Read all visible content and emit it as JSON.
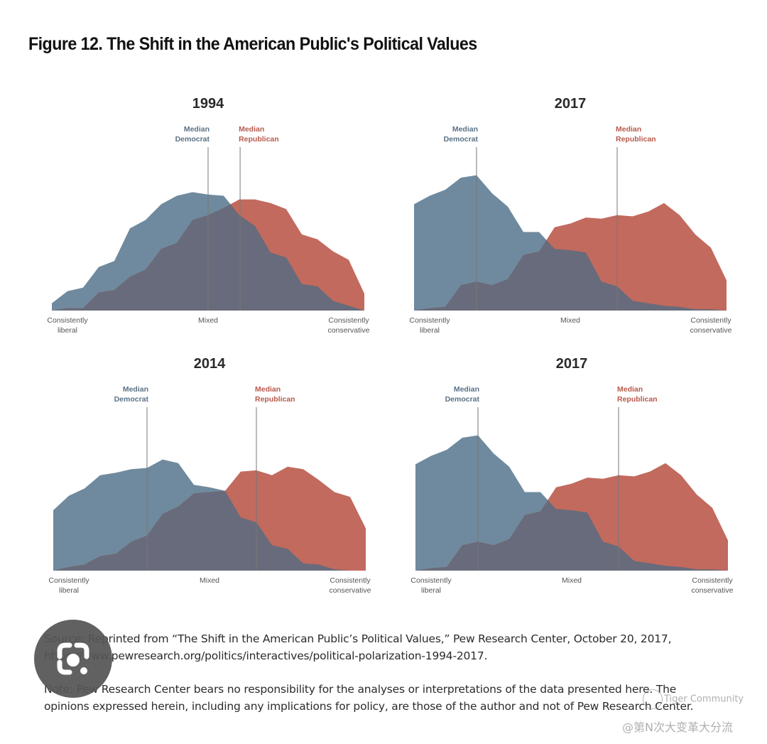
{
  "figure": {
    "title": "Figure 12. The Shift in the American Public's Political Values"
  },
  "colors": {
    "democrat": "#6f8a9e",
    "republican": "#c26a5e",
    "overlap": "#686b7b",
    "democrat_label": "#5a7286",
    "republican_label": "#b85a4c",
    "median_line": "#777777"
  },
  "chart_data": [
    {
      "type": "area",
      "title": "1994",
      "xlabel_left": "Consistently\nliberal",
      "xlabel_center": "Mixed",
      "xlabel_right": "Consistently\nconservative",
      "x_points": 21,
      "y_unit": "relative share (0-100, no axis shown)",
      "series": [
        {
          "name": "Democrats",
          "values": [
            6,
            16,
            19,
            36,
            41,
            68,
            75,
            88,
            95,
            98,
            96,
            95,
            79,
            70,
            48,
            44,
            22,
            20,
            8,
            4,
            0
          ]
        },
        {
          "name": "Republicans",
          "values": [
            0,
            2,
            2,
            15,
            17,
            28,
            34,
            51,
            56,
            75,
            79,
            85,
            92,
            92,
            89,
            84,
            63,
            59,
            49,
            42,
            14
          ]
        }
      ],
      "medians": {
        "democrat_label": "Median\nDemocrat",
        "republican_label": "Median\nRepublican",
        "democrat_position": 10.0,
        "republican_position": 12.05
      }
    },
    {
      "type": "area",
      "title": "2017",
      "xlabel_left": "Consistently\nliberal",
      "xlabel_center": "Mixed",
      "xlabel_right": "Consistently\nconservative",
      "x_points": 21,
      "y_unit": "relative share (0-100, no axis shown)",
      "series": [
        {
          "name": "Democrats",
          "values": [
            88,
            95,
            100,
            110,
            112,
            97,
            86,
            65,
            65,
            51,
            50,
            48,
            24,
            20,
            8,
            6,
            4,
            3,
            1,
            1,
            0
          ]
        },
        {
          "name": "Republicans",
          "values": [
            0,
            2,
            3,
            21,
            24,
            21,
            26,
            46,
            49,
            69,
            72,
            77,
            76,
            79,
            78,
            82,
            89,
            79,
            63,
            52,
            25
          ]
        }
      ],
      "medians": {
        "democrat_label": "Median\nDemocrat",
        "republican_label": "Median\nRepublican",
        "democrat_position": 4.0,
        "republican_position": 13.0
      }
    },
    {
      "type": "area",
      "title": "2014",
      "xlabel_left": "Consistently\nliberal",
      "xlabel_center": "Mixed",
      "xlabel_right": "Consistently\nconservative",
      "x_points": 21,
      "y_unit": "relative share (0-100, no axis shown)",
      "series": [
        {
          "name": "Democrats",
          "values": [
            50,
            62,
            68,
            79,
            81,
            84,
            85,
            92,
            89,
            71,
            69,
            66,
            44,
            40,
            21,
            18,
            6,
            5,
            1,
            0,
            0
          ]
        },
        {
          "name": "Republicans",
          "values": [
            0,
            3,
            5,
            12,
            14,
            24,
            29,
            47,
            53,
            64,
            65,
            66,
            82,
            83,
            79,
            86,
            84,
            75,
            65,
            61,
            35
          ]
        }
      ],
      "medians": {
        "democrat_label": "Median\nDemocrat",
        "republican_label": "Median\nRepublican",
        "democrat_position": 6.0,
        "republican_position": 13.0
      }
    },
    {
      "type": "area",
      "title": "2017",
      "xlabel_left": "Consistently\nliberal",
      "xlabel_center": "Mixed",
      "xlabel_right": "Consistently\nconservative",
      "x_points": 21,
      "y_unit": "relative share (0-100, no axis shown)",
      "series": [
        {
          "name": "Democrats",
          "values": [
            88,
            95,
            100,
            110,
            112,
            97,
            86,
            65,
            65,
            51,
            50,
            48,
            24,
            20,
            8,
            6,
            4,
            3,
            1,
            1,
            0
          ]
        },
        {
          "name": "Republicans",
          "values": [
            0,
            2,
            3,
            21,
            24,
            21,
            26,
            46,
            49,
            69,
            72,
            77,
            76,
            79,
            78,
            82,
            89,
            79,
            63,
            52,
            25
          ]
        }
      ],
      "medians": {
        "democrat_label": "Median\nDemocrat",
        "republican_label": "Median\nRepublican",
        "democrat_position": 4.0,
        "republican_position": 13.0
      }
    }
  ],
  "source": {
    "line1": "Source: Reprinted from “The Shift in the American Public’s Political Values,” Pew Research Center, October 20, 2017,",
    "line2": "https://www.pewresearch.org/politics/interactives/political-polarization-1994-2017."
  },
  "note": {
    "line1": "Note: Pew Research Center bears no responsibility for the analyses or interpretations of the data presented here. The",
    "line2": "opinions expressed herein, including any implications for policy, are those of the author and not of Pew Research Center."
  },
  "overlay": {
    "lens_icon": "lens-search-icon",
    "watermark_brand": "Tiger Community",
    "watermark_user": "@第N次大变革大分流"
  }
}
